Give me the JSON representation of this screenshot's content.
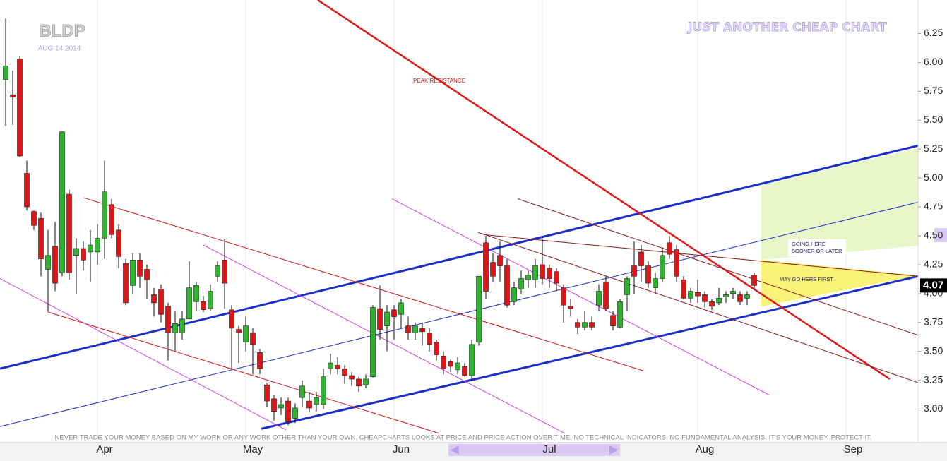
{
  "chart_data": {
    "type": "candlestick",
    "title": "BLDP",
    "subtitle": "AUG 14 2014",
    "brand": "JUST ANOTHER CHEAP CHART",
    "disclaimer": "NEVER TRADE YOUR MONEY BASED ON MY WORK OR ANY WORK OTHER THAN YOUR OWN. CHEAPCHARTS LOOKS AT PRICE AND PRICE ACTION OVER TIME. NO TECHNICAL INDICATORS. NO FUNDAMENTAL ANALYSIS. IT'S YOUR MONEY. PROTECT IT.",
    "annotations": {
      "peak": "PEAK RESISTANCE",
      "going": [
        "GOING HERE",
        "SOONER OR LATER"
      ],
      "first": "MAY GO HERE FIRST"
    },
    "up_color": "#2db42d",
    "down_color": "#e01515",
    "grid": "x",
    "xlim": [
      -0.8,
      129.2
    ],
    "xticks": [
      {
        "value": 14,
        "label": "Apr"
      },
      {
        "value": 35,
        "label": "May"
      },
      {
        "value": 56,
        "label": "Jun"
      },
      {
        "value": 77,
        "label": "Jul"
      },
      {
        "value": 99,
        "label": "Aug"
      },
      {
        "value": 120,
        "label": "Sep"
      }
    ],
    "ylim": [
      2.71,
      6.54
    ],
    "yticks": [
      {
        "value": 3,
        "label": "3.00"
      },
      {
        "value": 3.25,
        "label": "3.25"
      },
      {
        "value": 3.5,
        "label": "3.50"
      },
      {
        "value": 3.75,
        "label": "3.75"
      },
      {
        "value": 4,
        "label": "4.00"
      },
      {
        "value": 4.25,
        "label": "4.25"
      },
      {
        "value": 4.5,
        "label": "4.50"
      },
      {
        "value": 4.75,
        "label": "4.75"
      },
      {
        "value": 5,
        "label": "5.00"
      },
      {
        "value": 5.25,
        "label": "5.25"
      },
      {
        "value": 5.5,
        "label": "5.50"
      },
      {
        "value": 5.75,
        "label": "5.75"
      },
      {
        "value": 6,
        "label": "6.00"
      },
      {
        "value": 6.25,
        "label": "6.25"
      }
    ],
    "last_price": 4.07,
    "open": [
      5.85,
      5.72,
      6.03,
      5.04,
      4.71,
      4.65,
      4.21,
      4.41,
      4.18,
      4.86,
      4.33,
      4.39,
      4.36,
      4.36,
      4.48,
      4.77,
      4.55,
      4.26,
      4.07,
      4.29,
      4.21,
      3.99,
      4.04,
      3.89,
      3.66,
      3.66,
      3.78,
      3.93,
      3.93,
      3.87,
      4.15,
      4.29,
      3.86,
      3.69,
      3.58,
      3.66,
      3.49,
      3.21,
      3.09,
      3.01,
      3.07,
      2.92,
      3.1,
      3.07,
      3.04,
      3.04,
      3.35,
      3.38,
      3.35,
      3.29,
      3.26,
      3.21,
      3.28,
      3.87,
      3.72,
      3.86,
      3.82,
      3.72,
      3.66,
      3.7,
      3.66,
      3.58,
      3.46,
      3.41,
      3.34,
      3.37,
      3.29,
      3.58,
      4.44,
      4.27,
      4.33,
      4.24,
      3.93,
      4.04,
      4.12,
      4.12,
      4.25,
      4.22,
      4.19,
      4.05,
      3.89,
      3.75,
      3.71,
      3.75,
      3.9,
      4.1,
      3.81,
      3.71,
      3.99,
      4.24,
      4.36,
      4.24,
      4.05,
      4.13,
      4.44,
      4.38,
      4.12,
      3.96,
      4.01,
      3.99,
      3.93,
      3.92,
      3.97,
      4.0,
      3.99,
      3.96,
      4.16
    ],
    "high": [
      6.38,
      5.93,
      6.05,
      5.15,
      4.72,
      4.7,
      4.55,
      4.62,
      5.4,
      4.9,
      4.48,
      4.45,
      4.55,
      4.6,
      5.15,
      4.82,
      4.6,
      4.3,
      4.35,
      4.35,
      4.25,
      4.05,
      4.08,
      3.92,
      3.85,
      3.85,
      4.28,
      4.1,
      3.98,
      4.08,
      4.28,
      4.47,
      3.9,
      3.72,
      3.8,
      3.7,
      3.52,
      3.23,
      3.12,
      3.1,
      3.1,
      3.05,
      3.25,
      3.15,
      3.15,
      3.35,
      3.48,
      3.45,
      3.38,
      3.32,
      3.28,
      3.3,
      3.9,
      4.07,
      3.9,
      3.9,
      3.95,
      3.8,
      3.75,
      3.75,
      3.7,
      3.6,
      3.5,
      3.43,
      3.45,
      3.4,
      3.6,
      4.15,
      4.5,
      4.35,
      4.45,
      4.3,
      4.1,
      4.2,
      4.2,
      4.3,
      4.48,
      4.25,
      4.22,
      4.08,
      3.95,
      3.78,
      3.85,
      3.8,
      4.08,
      4.15,
      3.85,
      3.95,
      4.15,
      4.45,
      4.42,
      4.28,
      4.18,
      4.4,
      4.5,
      4.42,
      4.15,
      4.05,
      4.12,
      4.02,
      3.95,
      4.05,
      4.02,
      4.05,
      4.02,
      4.02,
      4.18
    ],
    "low": [
      5.45,
      5.46,
      5.18,
      4.72,
      4.55,
      4.15,
      3.85,
      4.02,
      4.15,
      4.12,
      4.0,
      4.2,
      4.1,
      4.25,
      4.3,
      4.48,
      4.22,
      3.9,
      4.0,
      4.05,
      3.95,
      3.8,
      3.75,
      3.42,
      3.5,
      3.6,
      3.78,
      3.85,
      3.84,
      3.85,
      4.1,
      3.87,
      3.35,
      3.4,
      3.5,
      3.3,
      3.3,
      3.02,
      2.9,
      2.95,
      2.86,
      2.88,
      3.02,
      2.97,
      2.98,
      3.0,
      3.3,
      3.3,
      3.22,
      3.2,
      3.15,
      3.18,
      3.27,
      3.6,
      3.5,
      3.6,
      3.7,
      3.6,
      3.6,
      3.55,
      3.5,
      3.42,
      3.3,
      3.32,
      3.3,
      3.28,
      3.25,
      3.55,
      3.95,
      4.1,
      4.1,
      3.88,
      3.9,
      4.0,
      4.05,
      4.05,
      4.08,
      4.05,
      4.02,
      3.75,
      3.8,
      3.65,
      3.68,
      3.68,
      3.85,
      3.85,
      3.68,
      3.7,
      3.85,
      4.0,
      4.1,
      4.05,
      4.0,
      4.1,
      4.3,
      4.1,
      3.95,
      3.92,
      3.92,
      3.88,
      3.86,
      3.9,
      3.92,
      3.95,
      3.9,
      3.9,
      4.03
    ],
    "close": [
      5.97,
      5.7,
      5.19,
      4.75,
      4.59,
      4.3,
      4.33,
      4.09,
      5.4,
      4.18,
      4.39,
      4.29,
      4.42,
      4.48,
      4.88,
      4.51,
      4.32,
      3.92,
      4.29,
      4.15,
      4.12,
      3.92,
      3.82,
      3.66,
      3.74,
      3.78,
      4.05,
      4.07,
      3.86,
      4.02,
      4.24,
      4.09,
      3.7,
      3.66,
      3.72,
      3.56,
      3.35,
      3.07,
      2.98,
      3.04,
      2.89,
      3.01,
      3.2,
      3.01,
      3.1,
      3.28,
      3.4,
      3.35,
      3.29,
      3.26,
      3.2,
      3.26,
      3.88,
      3.69,
      3.84,
      3.8,
      3.92,
      3.66,
      3.72,
      3.67,
      3.56,
      3.47,
      3.35,
      3.37,
      3.4,
      3.29,
      3.56,
      4.15,
      4.02,
      4.15,
      4.24,
      3.9,
      4.05,
      4.13,
      4.16,
      4.24,
      4.13,
      4.13,
      4.09,
      3.9,
      3.87,
      3.71,
      3.75,
      3.71,
      4.02,
      3.87,
      3.72,
      3.93,
      4.13,
      4.15,
      4.24,
      4.09,
      4.13,
      4.33,
      4.34,
      4.15,
      3.96,
      4.02,
      3.98,
      3.93,
      3.89,
      3.96,
      3.99,
      4.02,
      3.93,
      3.99,
      4.07
    ],
    "trendlines": [
      {
        "color": "#1a2ec8",
        "width": 3,
        "points": [
          [
            -0.8,
            3.35
          ],
          [
            129.2,
            5.28
          ]
        ]
      },
      {
        "color": "#1a2ec8",
        "width": 3,
        "points": [
          [
            36.2,
            2.83
          ],
          [
            129.2,
            4.15
          ]
        ]
      },
      {
        "color": "#1a2ec8",
        "width": 1,
        "points": [
          [
            -0.8,
            2.85
          ],
          [
            129.2,
            4.79
          ]
        ]
      },
      {
        "color": "#e01818",
        "width": 2.5,
        "points": [
          [
            44.2,
            6.54
          ],
          [
            125.2,
            3.26
          ]
        ]
      },
      {
        "color": "#d01818",
        "width": 1,
        "points": [
          [
            11,
            4.83
          ],
          [
            90.4,
            3.33
          ]
        ]
      },
      {
        "color": "#d01818",
        "width": 1,
        "points": [
          [
            6,
            3.84
          ],
          [
            61.4,
            2.79
          ]
        ]
      },
      {
        "color": "#d01818",
        "width": 1,
        "points": [
          [
            6,
            4.16
          ],
          [
            6,
            3.84
          ]
        ]
      },
      {
        "color": "#d040e0",
        "width": 1,
        "points": [
          [
            -0.8,
            4.13
          ],
          [
            39.7,
            2.82
          ]
        ]
      },
      {
        "color": "#d040e0",
        "width": 1,
        "points": [
          [
            28,
            4.42
          ],
          [
            79.2,
            2.79
          ]
        ]
      },
      {
        "color": "#d040e0",
        "width": 1,
        "points": [
          [
            54.7,
            4.82
          ],
          [
            108.2,
            3.12
          ]
        ]
      },
      {
        "color": "#8b1a1a",
        "width": 1,
        "points": [
          [
            72.5,
            4.82
          ],
          [
            129.2,
            3.64
          ]
        ]
      },
      {
        "color": "#8b1a1a",
        "width": 1,
        "points": [
          [
            66.9,
            4.53
          ],
          [
            129.2,
            3.23
          ]
        ]
      },
      {
        "color": "#8b1a1a",
        "width": 1,
        "points": [
          [
            67.7,
            4.51
          ],
          [
            129.2,
            4.15
          ]
        ]
      }
    ]
  }
}
